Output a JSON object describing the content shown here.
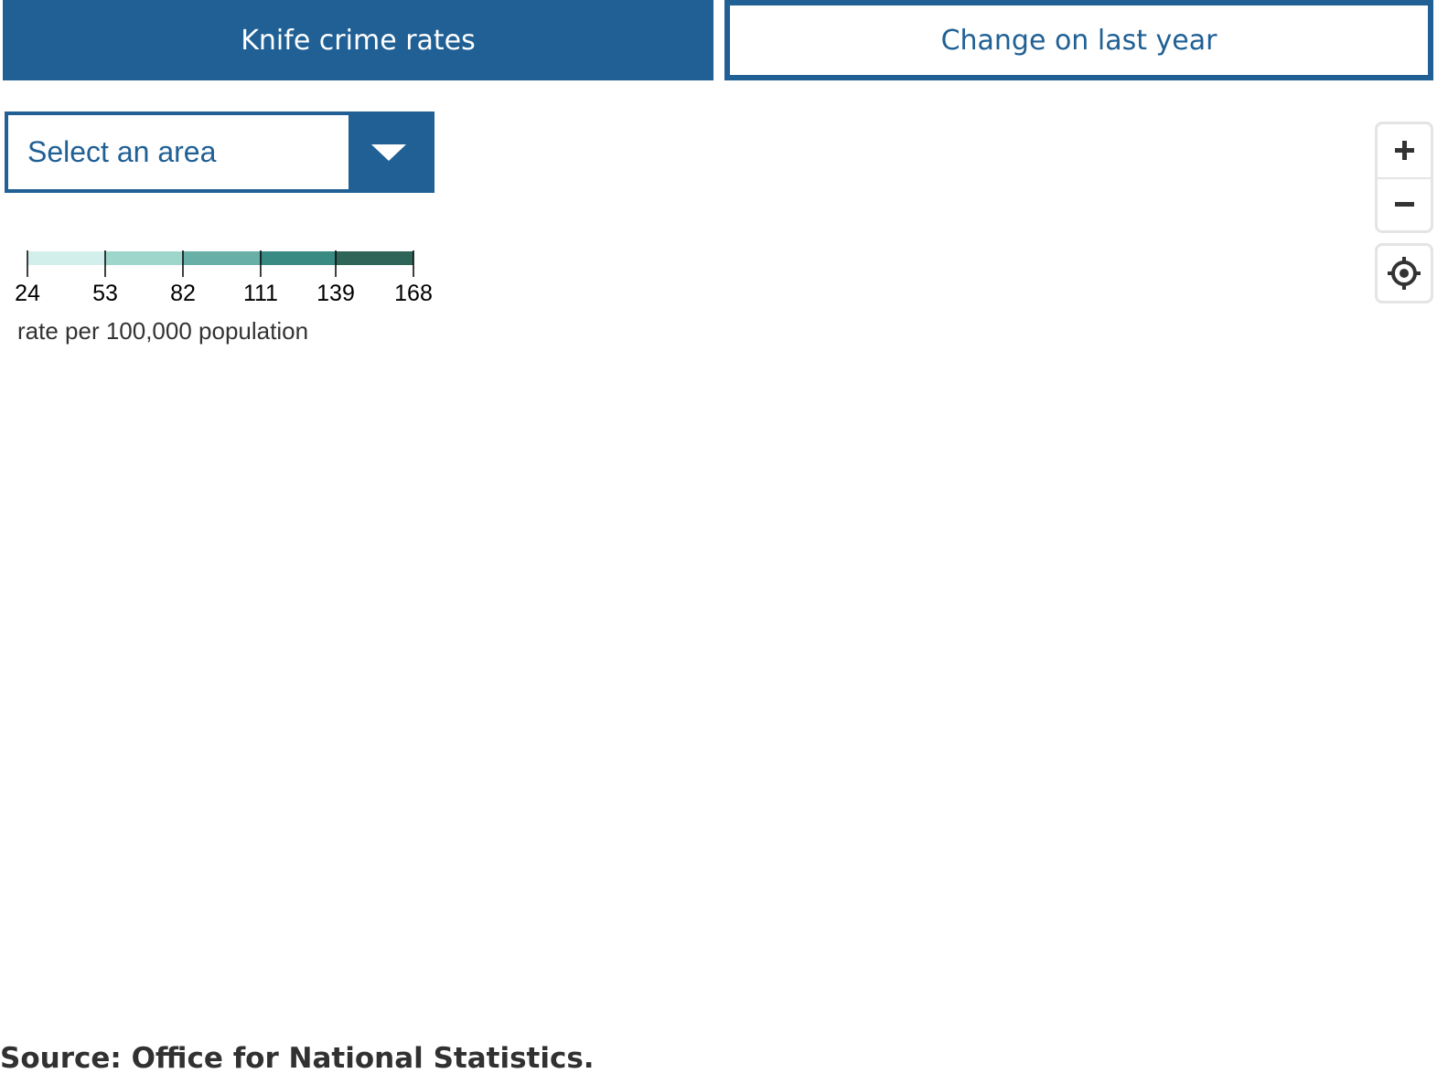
{
  "tabs": [
    {
      "label": "Knife crime rates",
      "active": true
    },
    {
      "label": "Change on last year",
      "active": false
    }
  ],
  "area_select": {
    "label": "Select an area"
  },
  "legend": {
    "breaks": [
      24,
      53,
      82,
      111,
      139,
      168
    ],
    "colors": [
      "#d2efeb",
      "#9fd6cb",
      "#67afa7",
      "#398a82",
      "#2f6458"
    ],
    "note": "rate per 100,000 population"
  },
  "map_controls": {
    "zoom_in_icon": "plus-icon",
    "zoom_out_icon": "minus-icon",
    "locate_icon": "crosshair-icon"
  },
  "colors": {
    "accent": "#206095"
  },
  "source": "Source: Office for National Statistics."
}
